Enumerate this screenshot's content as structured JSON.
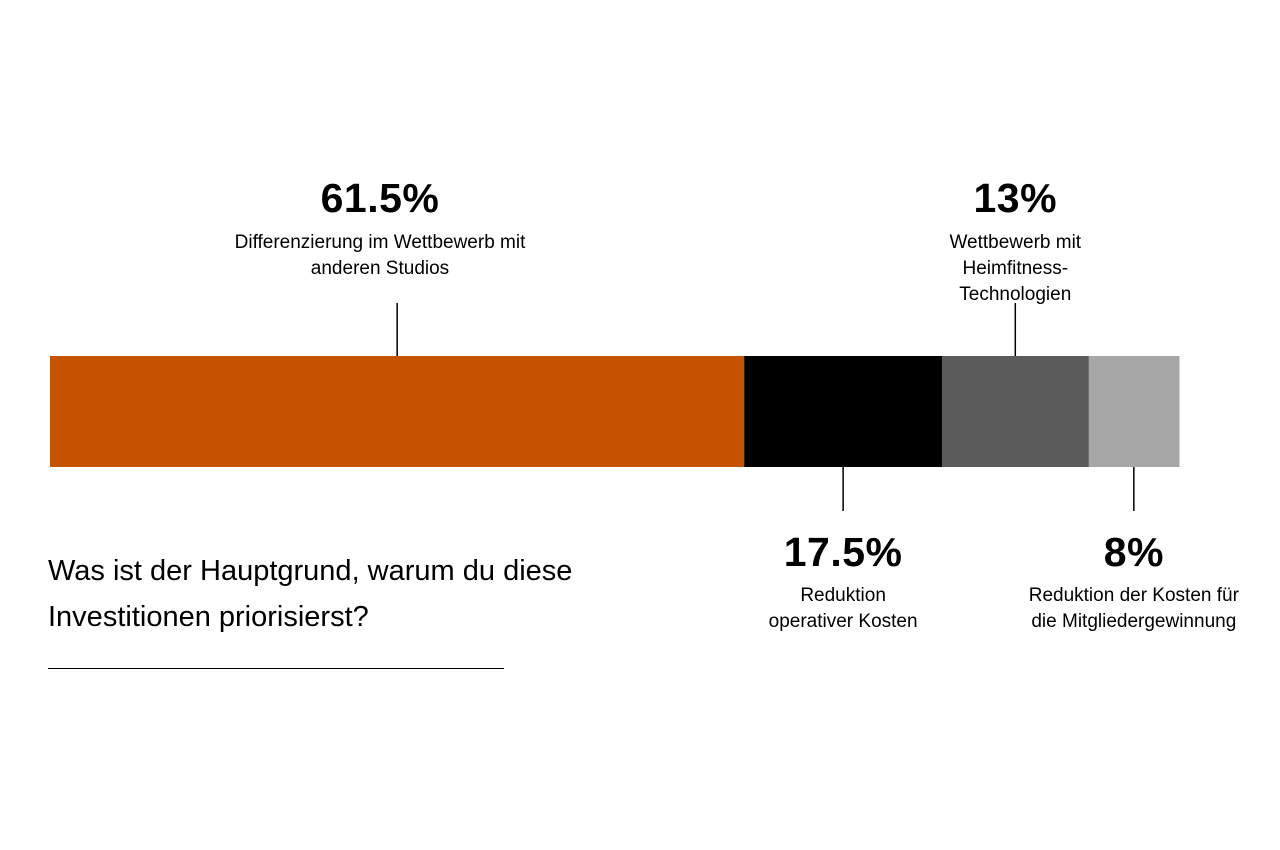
{
  "question": "Was ist der Hauptgrund, warum du diese Investitionen priorisierst?",
  "chart_data": {
    "type": "bar",
    "orientation": "horizontal-stacked-100",
    "title": "",
    "series": [
      {
        "value": 61.5,
        "value_label": "61.5%",
        "description": "Differenzierung im Wettbewerb mit anderen Studios",
        "color": "#C55200",
        "label_position": "top"
      },
      {
        "value": 17.5,
        "value_label": "17.5%",
        "description": "Reduktion operativer Kosten",
        "color": "#000000",
        "label_position": "bottom"
      },
      {
        "value": 13,
        "value_label": "13%",
        "description": "Wettbewerb mit Heimfitness-Technologien",
        "color": "#5B5B5B",
        "label_position": "top"
      },
      {
        "value": 8,
        "value_label": "8%",
        "description": "Reduktion der Kosten für die Mitgliedergewinnung",
        "color": "#A6A6A6",
        "label_position": "bottom"
      }
    ]
  }
}
